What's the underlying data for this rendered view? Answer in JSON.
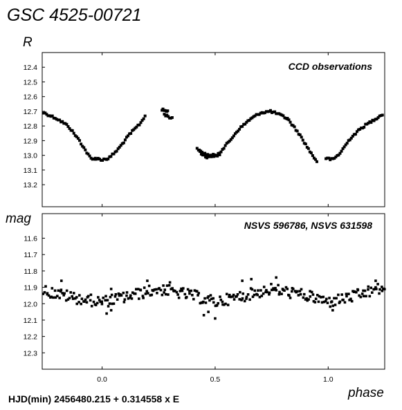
{
  "chart_data": {
    "title": "GSC 4525-00721",
    "xlabel": "phase",
    "footer": "HJD(min) 2456480.215 + 0.314558 x E",
    "x_ticks": [
      "0.0",
      "0.5",
      "1.0"
    ],
    "xlim": [
      -0.265,
      1.25
    ],
    "panels": [
      {
        "type": "scatter",
        "ylabel": "R",
        "annotation": "CCD observations",
        "ylim": [
          13.35,
          12.3
        ],
        "y_ticks": [
          "12.4",
          "12.5",
          "12.6",
          "12.7",
          "12.8",
          "12.9",
          "13.0",
          "13.1",
          "13.2"
        ],
        "segments": [
          {
            "x": [
              -0.258,
              -0.2,
              -0.15,
              -0.1,
              -0.06,
              -0.045,
              -0.03
            ],
            "y": [
              12.71,
              12.75,
              12.8,
              12.9,
              13.0,
              13.03,
              13.02
            ]
          },
          {
            "x": [
              -0.03,
              0.0,
              0.03,
              0.07,
              0.12,
              0.17,
              0.19
            ],
            "y": [
              13.02,
              13.03,
              13.02,
              12.96,
              12.86,
              12.78,
              12.73
            ]
          },
          {
            "x": [
              0.265,
              0.29
            ],
            "y": [
              12.69,
              12.7
            ]
          },
          {
            "x": [
              0.275,
              0.31
            ],
            "y": [
              12.72,
              12.75
            ]
          },
          {
            "x": [
              0.42,
              0.44,
              0.46,
              0.48,
              0.52
            ],
            "y": [
              12.95,
              12.99,
              13.01,
              13.01,
              12.99
            ]
          },
          {
            "x": [
              0.43,
              0.47,
              0.51
            ],
            "y": [
              12.97,
              13.0,
              13.0
            ]
          },
          {
            "x": [
              0.52,
              0.56,
              0.6,
              0.65,
              0.7,
              0.745,
              0.78,
              0.82
            ],
            "y": [
              12.98,
              12.91,
              12.83,
              12.76,
              12.71,
              12.7,
              12.72,
              12.75
            ]
          },
          {
            "x": [
              0.82,
              0.87,
              0.91,
              0.935,
              0.95
            ],
            "y": [
              12.75,
              12.85,
              12.95,
              13.01,
              13.04
            ]
          },
          {
            "x": [
              0.99,
              1.02,
              1.05,
              1.1,
              1.15,
              1.18,
              1.21,
              1.24
            ],
            "y": [
              13.02,
              13.03,
              12.99,
              12.88,
              12.81,
              12.78,
              12.75,
              12.72
            ]
          }
        ]
      },
      {
        "type": "scatter",
        "ylabel": "mag",
        "annotation": "NSVS 596786, NSVS 631598",
        "ylim": [
          12.4,
          11.45
        ],
        "y_ticks": [
          "11.6",
          "11.7",
          "11.8",
          "11.9",
          "12.0",
          "12.1",
          "12.2",
          "12.3"
        ],
        "mean_curve": {
          "x": [
            -0.26,
            -0.1,
            0.0,
            0.1,
            0.25,
            0.4,
            0.5,
            0.6,
            0.75,
            0.9,
            1.0,
            1.1,
            1.25
          ],
          "y": [
            11.92,
            11.97,
            11.99,
            11.96,
            11.91,
            11.95,
            11.99,
            11.96,
            11.91,
            11.95,
            11.99,
            11.96,
            11.9
          ]
        },
        "scatter_amplitude": 0.035,
        "outliers": [
          {
            "x": 0.02,
            "y": 12.06
          },
          {
            "x": 0.04,
            "y": 12.04
          },
          {
            "x": 0.45,
            "y": 12.07
          },
          {
            "x": 0.5,
            "y": 12.09
          },
          {
            "x": 0.47,
            "y": 12.05
          },
          {
            "x": 1.02,
            "y": 12.04
          },
          {
            "x": 0.62,
            "y": 11.86
          },
          {
            "x": 0.77,
            "y": 11.84
          },
          {
            "x": 0.66,
            "y": 11.85
          },
          {
            "x": 0.2,
            "y": 11.86
          },
          {
            "x": 1.21,
            "y": 11.86
          },
          {
            "x": 0.04,
            "y": 11.91
          },
          {
            "x": 0.3,
            "y": 11.87
          },
          {
            "x": -0.18,
            "y": 11.86
          }
        ]
      }
    ]
  }
}
